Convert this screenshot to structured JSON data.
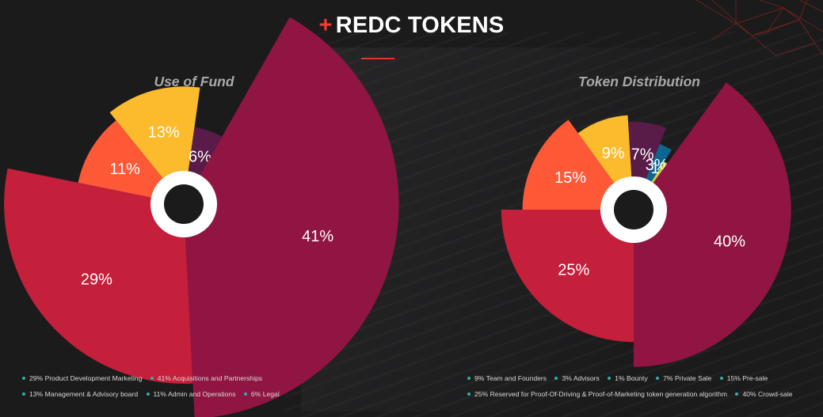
{
  "header": {
    "plus": "+",
    "title": "REDC TOKENS"
  },
  "chart_data": [
    {
      "type": "pie",
      "title": "Use of Fund",
      "slices": [
        {
          "label": "13%",
          "value": 13,
          "color": "#fbbb2c"
        },
        {
          "label": "6%",
          "value": 6,
          "color": "#591b48"
        },
        {
          "label": "41%",
          "value": 41,
          "color": "#901542"
        },
        {
          "label": "29%",
          "value": 29,
          "color": "#c41f3b"
        },
        {
          "label": "11%",
          "value": 11,
          "color": "#fd5936"
        }
      ],
      "legend": [
        [
          "29% Product Development Marketing",
          "41% Acquisitions and Partnerships"
        ],
        [
          "13% Management & Advisory board",
          "11% Admin and Operations",
          "6% Legal"
        ]
      ]
    },
    {
      "type": "pie",
      "title": "Token Distribution",
      "slices": [
        {
          "label": "9%",
          "value": 9,
          "color": "#fbbb2c"
        },
        {
          "label": "7%",
          "value": 7,
          "color": "#591b48"
        },
        {
          "label": "3%",
          "value": 3,
          "color": "#0e6590"
        },
        {
          "label": "1%",
          "value": 1,
          "color": "#cdd138"
        },
        {
          "label": "40%",
          "value": 40,
          "color": "#901542"
        },
        {
          "label": "25%",
          "value": 25,
          "color": "#c41f3b"
        },
        {
          "label": "15%",
          "value": 15,
          "color": "#fd5936"
        }
      ],
      "legend": [
        [
          "9% Team and Founders",
          "3% Advisors",
          "1% Bounty",
          "7% Private Sale",
          "15% Pre-sale"
        ],
        [
          "25% Reserved for Proof-Of-Driving & Proof-of-Marketing token generation algorithm",
          "40% Crowd-sale"
        ]
      ]
    }
  ]
}
